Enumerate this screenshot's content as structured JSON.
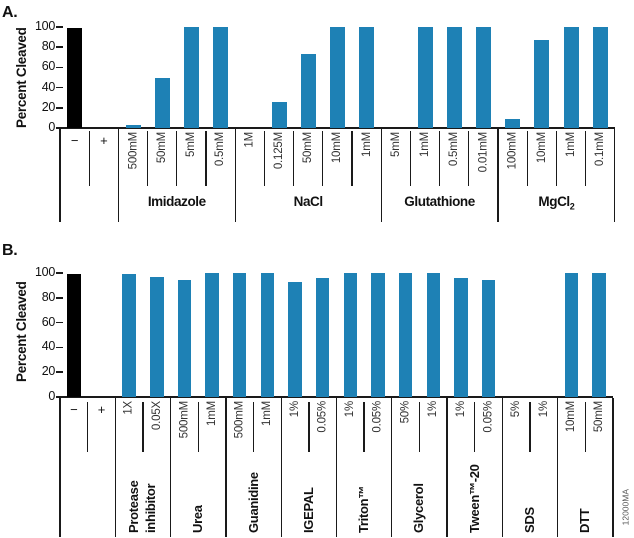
{
  "watermark": "12000MA",
  "colors": {
    "bar_blue": "#1E81B5",
    "bar_black": "#000000",
    "line": "#1A1A1A"
  },
  "chart_data": [
    {
      "type": "bar",
      "panel_label": "A.",
      "ylabel": "Percent Cleaved",
      "ylim": [
        0,
        100
      ],
      "yticks": [
        0,
        20,
        40,
        60,
        80,
        100
      ],
      "grid": false,
      "legend": "none",
      "groups": [
        {
          "label": "",
          "horizontal_labels": true,
          "bars": [
            {
              "label": "−",
              "value": 99,
              "black": true
            },
            {
              "label": "+",
              "value": 0,
              "black": true
            }
          ]
        },
        {
          "label": "Imidazole",
          "bars": [
            {
              "label": "500mM",
              "value": 3
            },
            {
              "label": "50mM",
              "value": 50
            },
            {
              "label": "5mM",
              "value": 100
            },
            {
              "label": "0.5mM",
              "value": 100
            }
          ]
        },
        {
          "label": "NaCl",
          "bars": [
            {
              "label": "1M",
              "value": 0
            },
            {
              "label": "0.125M",
              "value": 26
            },
            {
              "label": "50mM",
              "value": 73
            },
            {
              "label": "10mM",
              "value": 100
            },
            {
              "label": "1mM",
              "value": 100
            }
          ]
        },
        {
          "label": "Glutathione",
          "bars": [
            {
              "label": "5mM",
              "value": 0
            },
            {
              "label": "1mM",
              "value": 100
            },
            {
              "label": "0.5mM",
              "value": 100
            },
            {
              "label": "0.01mM",
              "value": 100
            }
          ]
        },
        {
          "label": "MgCl",
          "sub": "2",
          "bars": [
            {
              "label": "100mM",
              "value": 9
            },
            {
              "label": "10mM",
              "value": 87
            },
            {
              "label": "1mM",
              "value": 100
            },
            {
              "label": "0.1mM",
              "value": 100
            }
          ]
        }
      ]
    },
    {
      "type": "bar",
      "panel_label": "B.",
      "ylabel": "Percent Cleaved",
      "ylim": [
        0,
        100
      ],
      "yticks": [
        0,
        20,
        40,
        60,
        80,
        100
      ],
      "grid": false,
      "legend": "none",
      "groups": [
        {
          "label": "",
          "horizontal_labels": true,
          "bars": [
            {
              "label": "−",
              "value": 99,
              "black": true
            },
            {
              "label": "+",
              "value": 0,
              "black": true
            }
          ]
        },
        {
          "label": "Protease inhibitor",
          "bars": [
            {
              "label": "1X",
              "value": 99
            },
            {
              "label": "0.05X",
              "value": 97
            }
          ]
        },
        {
          "label": "Urea",
          "bars": [
            {
              "label": "500mM",
              "value": 94
            },
            {
              "label": "1mM",
              "value": 100
            }
          ]
        },
        {
          "label": "Guanidine",
          "bars": [
            {
              "label": "500mM",
              "value": 100
            },
            {
              "label": "1mM",
              "value": 100
            }
          ]
        },
        {
          "label": "IGEPAL",
          "bars": [
            {
              "label": "1%",
              "value": 93
            },
            {
              "label": "0.05%",
              "value": 96
            }
          ]
        },
        {
          "label": "Triton™",
          "bars": [
            {
              "label": "1%",
              "value": 100
            },
            {
              "label": "0.05%",
              "value": 100
            }
          ]
        },
        {
          "label": "Glycerol",
          "bars": [
            {
              "label": "50%",
              "value": 100
            },
            {
              "label": "1%",
              "value": 100
            }
          ]
        },
        {
          "label": "Tween™-20",
          "bars": [
            {
              "label": "1%",
              "value": 96
            },
            {
              "label": "0.05%",
              "value": 94
            }
          ]
        },
        {
          "label": "SDS",
          "bars": [
            {
              "label": "5%",
              "value": 0
            },
            {
              "label": "1%",
              "value": 0
            }
          ]
        },
        {
          "label": "DTT",
          "bars": [
            {
              "label": "10mM",
              "value": 100
            },
            {
              "label": "50mM",
              "value": 100
            }
          ]
        }
      ]
    }
  ]
}
